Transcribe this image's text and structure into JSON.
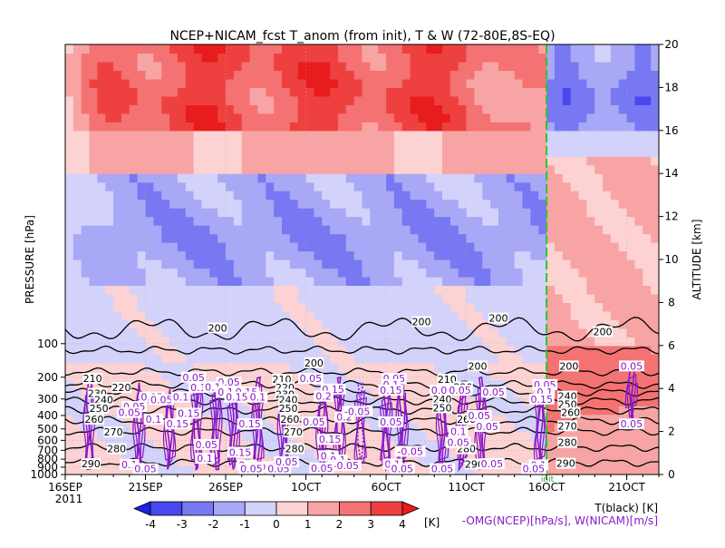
{
  "chart_data": {
    "type": "heatmap",
    "title": "NCEP+NICAM_fcst T_anom (from init), T & W  (72-80E,8S-EQ)",
    "ylabel_left": "PRESSURE [hPa]",
    "ylabel_right": "ALTITUDE [km]",
    "pressure_ticks": [
      "100",
      "200",
      "300",
      "400",
      "500",
      "600",
      "700",
      "800",
      "900",
      "1000"
    ],
    "pressure_values": [
      100,
      200,
      300,
      400,
      500,
      600,
      700,
      800,
      900,
      1000
    ],
    "altitude_ticks": [
      "0",
      "2",
      "4",
      "6",
      "8",
      "10",
      "12",
      "14",
      "16",
      "18",
      "20"
    ],
    "altitude_values": [
      0,
      2,
      4,
      6,
      8,
      10,
      12,
      14,
      16,
      18,
      20
    ],
    "x_ticks": [
      "16SEP",
      "21SEP",
      "26SEP",
      "1OCT",
      "6OCT",
      "11OCT",
      "16OCT",
      "21OCT"
    ],
    "x_day_index": [
      0,
      5,
      10,
      15,
      20,
      25,
      30,
      35
    ],
    "year_label": "2011",
    "init_marker_label": "init",
    "init_day_index": 30,
    "xlim_day_index": [
      0,
      37
    ],
    "colorbar": {
      "labels": [
        "-4",
        "-3",
        "-2",
        "-1",
        "0",
        "1",
        "2",
        "3",
        "4"
      ],
      "values": [
        -4,
        -3,
        -2,
        -1,
        0,
        1,
        2,
        3,
        4
      ],
      "unit": "[K]",
      "colors": [
        "#2020e6",
        "#4848ef",
        "#7878f2",
        "#a8a8f6",
        "#d2d2fb",
        "#fcd2d2",
        "#f8a4a4",
        "#f47272",
        "#ef4040",
        "#e81c1c"
      ]
    },
    "legend_temperature": "T(black) [K]",
    "legend_wind": "-OMG(NCEP)[hPa/s], W(NICAM)[m/s]",
    "temperature_contours": [
      {
        "label": "200",
        "pressure": 115,
        "labels_at": [
          {
            "day": 9.5,
            "p": 70
          },
          {
            "day": 22.2,
            "p": 60
          },
          {
            "day": 27,
            "p": 55
          },
          {
            "day": 15.5,
            "p": 150
          },
          {
            "day": 25.7,
            "p": 160
          },
          {
            "day": 31.4,
            "p": 160
          },
          {
            "day": 33.5,
            "p": 76
          }
        ]
      },
      {
        "label": "210",
        "pressure": 180,
        "labels_at": [
          {
            "day": 1.7,
            "p": 205
          },
          {
            "day": 13.5,
            "p": 208
          },
          {
            "day": 23.8,
            "p": 208
          }
        ]
      },
      {
        "label": "220",
        "pressure": 230,
        "labels_at": [
          {
            "day": 3.5,
            "p": 243
          },
          {
            "day": 13.7,
            "p": 243
          },
          {
            "day": 24.8,
            "p": 240
          }
        ]
      },
      {
        "label": "230",
        "pressure": 265,
        "labels_at": [
          {
            "day": 2,
            "p": 270
          },
          {
            "day": 13.7,
            "p": 275
          },
          {
            "day": 23.5,
            "p": 268
          }
        ]
      },
      {
        "label": "240",
        "pressure": 310,
        "labels_at": [
          {
            "day": 2.4,
            "p": 303
          },
          {
            "day": 13.9,
            "p": 303
          },
          {
            "day": 23.5,
            "p": 300
          },
          {
            "day": 31.3,
            "p": 285
          }
        ]
      },
      {
        "label": "250",
        "pressure": 365,
        "labels_at": [
          {
            "day": 2.1,
            "p": 353
          },
          {
            "day": 13.9,
            "p": 353
          },
          {
            "day": 23.5,
            "p": 350
          },
          {
            "day": 31.3,
            "p": 330
          }
        ]
      },
      {
        "label": "260",
        "pressure": 435,
        "labels_at": [
          {
            "day": 1.8,
            "p": 425
          },
          {
            "day": 14,
            "p": 425
          },
          {
            "day": 25,
            "p": 425
          },
          {
            "day": 31.5,
            "p": 380
          }
        ]
      },
      {
        "label": "270",
        "pressure": 520,
        "labels_at": [
          {
            "day": 3,
            "p": 525
          },
          {
            "day": 14.2,
            "p": 525
          },
          {
            "day": 31.3,
            "p": 475
          }
        ]
      },
      {
        "label": "280",
        "pressure": 670,
        "labels_at": [
          {
            "day": 3.2,
            "p": 683
          },
          {
            "day": 14.3,
            "p": 683
          },
          {
            "day": 25,
            "p": 683
          },
          {
            "day": 31.3,
            "p": 620
          }
        ]
      },
      {
        "label": "290",
        "pressure": 840,
        "labels_at": [
          {
            "day": 1.6,
            "p": 855
          },
          {
            "day": 25.5,
            "p": 860
          },
          {
            "day": 31.2,
            "p": 850
          }
        ]
      }
    ],
    "wind_contour_labels": [
      "0.05",
      "0.1",
      "0.15",
      "0.2",
      "-0.05"
    ],
    "wind_label_positions": [
      {
        "t": "0.05",
        "day": 8,
        "p": 200
      },
      {
        "t": "0.05",
        "day": 10.2,
        "p": 220
      },
      {
        "t": "0.1",
        "day": 8.3,
        "p": 243
      },
      {
        "t": "0.1",
        "day": 9.2,
        "p": 240
      },
      {
        "t": "0.1",
        "day": 10,
        "p": 265
      },
      {
        "t": "0.15",
        "day": 11.3,
        "p": 265
      },
      {
        "t": "0.05",
        "day": 5.4,
        "p": 290
      },
      {
        "t": "0.05",
        "day": 6,
        "p": 303
      },
      {
        "t": "0.1",
        "day": 7.2,
        "p": 290
      },
      {
        "t": "0.15",
        "day": 10.7,
        "p": 290
      },
      {
        "t": "0.1",
        "day": 12,
        "p": 290
      },
      {
        "t": "0.05",
        "day": 4.3,
        "p": 343
      },
      {
        "t": "0.05",
        "day": 4,
        "p": 380
      },
      {
        "t": "0.1",
        "day": 5.5,
        "p": 425
      },
      {
        "t": "0.15",
        "day": 7.7,
        "p": 385
      },
      {
        "t": "0.15",
        "day": 7,
        "p": 460
      },
      {
        "t": "0.15",
        "day": 11.5,
        "p": 460
      },
      {
        "t": "0.05",
        "day": 8.8,
        "p": 640
      },
      {
        "t": "0.15",
        "day": 10.9,
        "p": 720
      },
      {
        "t": "0.1",
        "day": 8.7,
        "p": 790
      },
      {
        "t": "0.1",
        "day": 4,
        "p": 865
      },
      {
        "t": "0.05",
        "day": 5,
        "p": 920
      },
      {
        "t": "0.1",
        "day": 11.3,
        "p": 870
      },
      {
        "t": "0.05",
        "day": 12.2,
        "p": 895
      },
      {
        "t": "0.05",
        "day": 11.6,
        "p": 920
      },
      {
        "t": "0.05",
        "day": 13.3,
        "p": 920
      },
      {
        "t": "0.05",
        "day": 13.8,
        "p": 830
      },
      {
        "t": "0.05",
        "day": 15.3,
        "p": 205
      },
      {
        "t": "0.15",
        "day": 16.7,
        "p": 250
      },
      {
        "t": "0.2",
        "day": 16.1,
        "p": 285
      },
      {
        "t": "0.2",
        "day": 17.4,
        "p": 410
      },
      {
        "t": "-0.05",
        "day": 18.2,
        "p": 373
      },
      {
        "t": "0.05",
        "day": 15.5,
        "p": 445
      },
      {
        "t": "0.15",
        "day": 16.5,
        "p": 590
      },
      {
        "t": "0.1",
        "day": 16.4,
        "p": 760
      },
      {
        "t": "0.1",
        "day": 17,
        "p": 810
      },
      {
        "t": "-0.05",
        "day": 17.5,
        "p": 875
      },
      {
        "t": "0.05",
        "day": 16,
        "p": 910
      },
      {
        "t": "0.05",
        "day": 20.5,
        "p": 205
      },
      {
        "t": "0.1",
        "day": 20.3,
        "p": 230
      },
      {
        "t": "0.15",
        "day": 20.3,
        "p": 255
      },
      {
        "t": "0.05",
        "day": 20.3,
        "p": 445
      },
      {
        "t": "-0.05",
        "day": 21.5,
        "p": 710
      },
      {
        "t": "0.1",
        "day": 20.4,
        "p": 860
      },
      {
        "t": "0.05",
        "day": 21,
        "p": 920
      },
      {
        "t": "0.05",
        "day": 23.5,
        "p": 255
      },
      {
        "t": "0.05",
        "day": 24.6,
        "p": 255
      },
      {
        "t": "0.05",
        "day": 26.7,
        "p": 265
      },
      {
        "t": "0.1",
        "day": 24.5,
        "p": 520
      },
      {
        "t": "0.05",
        "day": 25.8,
        "p": 400
      },
      {
        "t": "0.05",
        "day": 26.3,
        "p": 480
      },
      {
        "t": "0.05",
        "day": 24.5,
        "p": 620
      },
      {
        "t": "0.05",
        "day": 23.5,
        "p": 920
      },
      {
        "t": "0.05",
        "day": 26.6,
        "p": 855
      },
      {
        "t": "0.05",
        "day": 29.9,
        "p": 230
      },
      {
        "t": "0.1",
        "day": 29.9,
        "p": 265
      },
      {
        "t": "0.15",
        "day": 29.7,
        "p": 300
      },
      {
        "t": "0.1",
        "day": 29.5,
        "p": 870
      },
      {
        "t": "0.05",
        "day": 29.2,
        "p": 920
      },
      {
        "t": "0.05",
        "day": 35.3,
        "p": 160
      },
      {
        "t": "0.05",
        "day": 35.3,
        "p": 460
      }
    ]
  }
}
